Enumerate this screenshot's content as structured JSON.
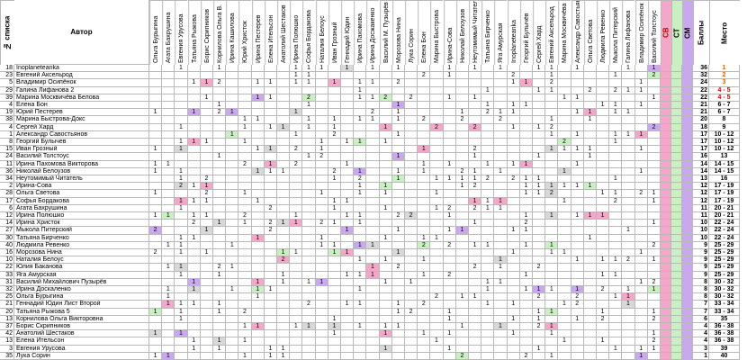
{
  "headers": {
    "num": "№ списка",
    "author": "Автор",
    "sv": "СВ",
    "st": "СТ",
    "sm": "СМ",
    "points": "Баллы",
    "place": "Место"
  },
  "voters": [
    "Ольга Бурыгина",
    "Агата Бахрушина",
    "Евгения Урусова",
    "Татьяна Рыжова",
    "Борис Скрипников",
    "Корнилова Ольга В.",
    "Ирина Кашилова",
    "Юрий Христок",
    "Ирина Пестерев",
    "Елена Ительсон",
    "Анатолий Шестаков",
    "Ирина Полюшко",
    "Софья Бордакова",
    "Наталия Белоус",
    "Иван Грозный",
    "Геннадий Юдин",
    "Ирина Пахомова",
    "Ирина Досжакенко",
    "Василий М. Пузырёв",
    "Морозова Нина",
    "Лука Сорин",
    "Елена Бон",
    "Марина Быстрова",
    "Ирина-Сова",
    "Николай Белоузов",
    "Неутомимый Читатель",
    "Татьяна Бирченко",
    "Яга Амурская",
    "Inoplaneteanka",
    "Георгий Булычёв",
    "Сергей Хард",
    "Евгений Аксельрод",
    "Марина Москвичёва",
    "Александр Савостьянов",
    "Ольга Светова",
    "Людмила Ревенко",
    "Мыкола Питерский",
    "Галина Лифанова",
    "Владимир Осипёнок",
    "Василий Толстоус"
  ],
  "rows": [
    {
      "n": "18",
      "author": "Inoplaneteanka",
      "points": "36",
      "place": "1"
    },
    {
      "n": "23",
      "author": "Евгений Аксельрод",
      "points": "32",
      "place": "2"
    },
    {
      "n": "5",
      "author": "Владимир Осипёнок",
      "points": "24",
      "place": "3"
    },
    {
      "n": "29",
      "author": "Галина Лифанова 2",
      "points": "22",
      "place": "4 - 5"
    },
    {
      "n": "39",
      "author": "Марина Москвичёва Белова",
      "points": "22",
      "place": "4 - 5"
    },
    {
      "n": "4",
      "author": "Елена Бон",
      "points": "21",
      "place": "6 - 7"
    },
    {
      "n": "19",
      "author": "Юрий Пестерев",
      "points": "21",
      "place": "6 - 7"
    },
    {
      "n": "38",
      "author": "Марина Быстрова-Докс",
      "points": "20",
      "place": "8"
    },
    {
      "n": "4",
      "author": "Сергей Хард",
      "points": "18",
      "place": "9"
    },
    {
      "n": "1",
      "author": "Александр Савостьянов",
      "points": "17",
      "place": "10 - 12"
    },
    {
      "n": "8",
      "author": "Георгий Булычев",
      "points": "17",
      "place": "10 - 12"
    },
    {
      "n": "15",
      "author": "Иван Грозный",
      "points": "17",
      "place": "10 - 12"
    },
    {
      "n": "24",
      "author": "Василий Толстоус",
      "points": "16",
      "place": "13"
    },
    {
      "n": "11",
      "author": "Ирина Пахомова Викторова",
      "points": "14",
      "place": "14 - 15"
    },
    {
      "n": "36",
      "author": "Николай Белоузов",
      "points": "14",
      "place": "14 - 15"
    },
    {
      "n": "34",
      "author": "Неутомимый Читатель",
      "points": "13",
      "place": "16"
    },
    {
      "n": "2",
      "author": "Ирина-Сова",
      "points": "12",
      "place": "17 - 19"
    },
    {
      "n": "28",
      "author": "Ольга Светова",
      "points": "12",
      "place": "17 - 19"
    },
    {
      "n": "17",
      "author": "Софья Бордакова",
      "points": "12",
      "place": "17 - 19"
    },
    {
      "n": "6",
      "author": "Агата Бахрушина",
      "points": "11",
      "place": "20 - 21"
    },
    {
      "n": "12",
      "author": "Ирина Полюшко",
      "points": "11",
      "place": "20 - 21"
    },
    {
      "n": "14",
      "author": "Ирина Христок",
      "points": "10",
      "place": "22 - 24"
    },
    {
      "n": "27",
      "author": "Мыкола Питерский",
      "points": "10",
      "place": "22 - 24"
    },
    {
      "n": "30",
      "author": "Татьяна Бирченко",
      "points": "10",
      "place": "22 - 24"
    },
    {
      "n": "40",
      "author": "Людмила Ревенко",
      "points": "9",
      "place": "25 - 29"
    },
    {
      "n": "16",
      "author": "Морозова Нина",
      "points": "9",
      "place": "25 - 29"
    },
    {
      "n": "10",
      "author": "Наталия Белоус",
      "points": "9",
      "place": "25 - 29"
    },
    {
      "n": "22",
      "author": "Юлия Баканова",
      "points": "9",
      "place": "25 - 29"
    },
    {
      "n": "33",
      "author": "Яга Амурская",
      "points": "9",
      "place": "25 - 29"
    },
    {
      "n": "31",
      "author": "Василий Михайлович Пузырёв",
      "points": "8",
      "place": "30 - 32"
    },
    {
      "n": "32",
      "author": "Ирина Доскаленко",
      "points": "8",
      "place": "30 - 32"
    },
    {
      "n": "25",
      "author": "Ольга Бурыгина",
      "points": "8",
      "place": "30 - 32"
    },
    {
      "n": "21",
      "author": "Геннадий Юдин Лист Второй",
      "points": "7",
      "place": "33 - 34"
    },
    {
      "n": "20",
      "author": "Татьяна Рыжова 5",
      "points": "7",
      "place": "33 - 34"
    },
    {
      "n": "13",
      "author": "Корнилова Ольга Викторовна",
      "points": "6",
      "place": "35"
    },
    {
      "n": "37",
      "author": "Борис Скрипников",
      "points": "4",
      "place": "36 - 38"
    },
    {
      "n": "42",
      "author": "Анатолий Шестаков",
      "points": "4",
      "place": "36 - 38"
    },
    {
      "n": "13",
      "author": "Елена Ительсон",
      "points": "4",
      "place": "36 - 38"
    },
    {
      "n": "3",
      "author": "Евгения Урусова",
      "points": "3",
      "place": "39"
    },
    {
      "n": "35",
      "author": "Лука Сорин",
      "points": "1",
      "place": "40"
    }
  ],
  "colors": {
    "pink": "#f4a7c8",
    "purple": "#c9a8f0",
    "green": "#c8f0c0",
    "gray": "#d8d8d8",
    "place_orange": "#e06000",
    "place_red": "#cc0000"
  }
}
